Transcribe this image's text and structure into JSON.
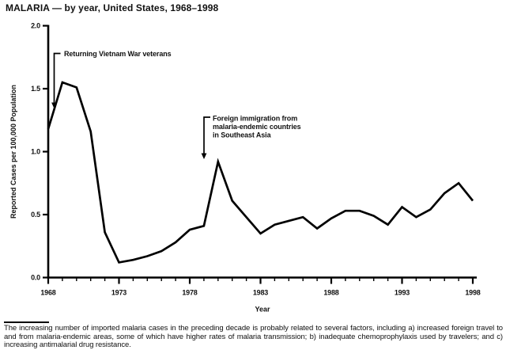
{
  "title": "MALARIA — by year, United States, 1968–1998",
  "chart_data": {
    "type": "line",
    "title": "MALARIA — by year, United States, 1968–1998",
    "xlabel": "Year",
    "ylabel": "Reported Cases per 100,000 Population",
    "x": [
      1968,
      1969,
      1970,
      1971,
      1972,
      1973,
      1974,
      1975,
      1976,
      1977,
      1978,
      1979,
      1980,
      1981,
      1982,
      1983,
      1984,
      1985,
      1986,
      1987,
      1988,
      1989,
      1990,
      1991,
      1992,
      1993,
      1994,
      1995,
      1996,
      1997,
      1998
    ],
    "values": [
      1.18,
      1.55,
      1.51,
      1.16,
      0.36,
      0.12,
      0.14,
      0.17,
      0.21,
      0.28,
      0.38,
      0.41,
      0.92,
      0.61,
      0.48,
      0.35,
      0.42,
      0.45,
      0.48,
      0.39,
      0.47,
      0.53,
      0.53,
      0.49,
      0.42,
      0.56,
      0.48,
      0.54,
      0.67,
      0.75,
      0.61
    ],
    "ylim": [
      0.0,
      2.0
    ],
    "yticks": [
      0.0,
      0.5,
      1.0,
      1.5,
      2.0
    ],
    "xticks": [
      1968,
      1973,
      1978,
      1983,
      1988,
      1993,
      1998
    ],
    "grid": false,
    "legend_position": "none",
    "line_color": "#000000",
    "axis_color": "#000000",
    "annotations": [
      {
        "lines": [
          "Returning Vietnam War veterans"
        ],
        "points_to": {
          "year": 1968.4,
          "value": 1.34
        }
      },
      {
        "lines": [
          "Foreign immigration from",
          "malaria-endemic countries",
          "in Southeast Asia"
        ],
        "points_to": {
          "year": 1979.0,
          "value": 0.94
        }
      }
    ]
  },
  "footnote": {
    "text": "The increasing number of imported malaria cases in the preceding decade is probably related to several factors, including a) increased foreign travel to and from malaria-endemic areas, some of which have higher rates of malaria transmission; b) inadequate chemoprophylaxis used by travelers; and c) increasing antimalarial drug resistance."
  }
}
